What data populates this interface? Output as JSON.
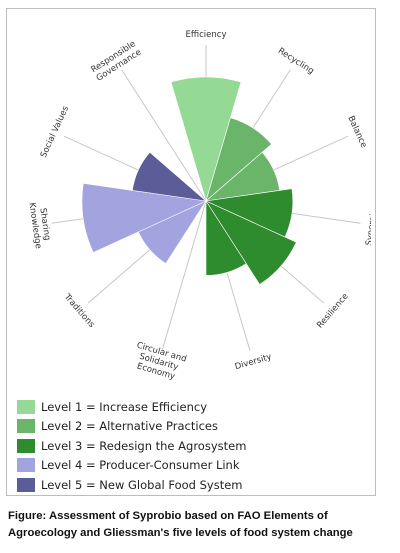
{
  "chart_data": {
    "type": "polar-area",
    "title": "",
    "categories": [
      "Efficiency",
      "Recycling",
      "Balance",
      "Synergies",
      "Resilience",
      "Diversity",
      "Circular and Solidarity Economy",
      "Traditions",
      "Sharing Knowledge",
      "Social Values",
      "Responsible Governance"
    ],
    "category_lines": [
      [
        "Efficiency"
      ],
      [
        "Recycling"
      ],
      [
        "Balance"
      ],
      [
        "Synergies"
      ],
      [
        "Resilience"
      ],
      [
        "Diversity"
      ],
      [
        "Circular and",
        "Solidarity",
        "Economy"
      ],
      [
        "Traditions"
      ],
      [
        "Sharing",
        "Knowledge"
      ],
      [
        "Social Values"
      ],
      [
        "Responsible",
        "Governance"
      ]
    ],
    "values": [
      5,
      3.5,
      3,
      3.5,
      4,
      3,
      0,
      3,
      5,
      3,
      0
    ],
    "level_of_category": [
      1,
      2,
      2,
      3,
      3,
      3,
      null,
      4,
      4,
      5,
      null
    ],
    "scale_max": 5,
    "legend": [
      {
        "level": "Level 1",
        "label": "Increase Efficiency",
        "color": "#94d994"
      },
      {
        "level": "Level 2",
        "label": "Alternative Practices",
        "color": "#6bb56b"
      },
      {
        "level": "Level 3",
        "label": "Redesign the Agrosystem",
        "color": "#2e8b2e"
      },
      {
        "level": "Level 4",
        "label": "Producer-Consumer Link",
        "color": "#a3a3e0"
      },
      {
        "level": "Level 5",
        "label": "New Global Food System",
        "color": "#5c5c99"
      }
    ],
    "legend_placement": "bottom",
    "grid": false
  },
  "caption": {
    "line1": "Figure: Assessment of Syprobio based on FAO Elements of",
    "line2": "Agroecology and Gliessman's five levels of food system change"
  }
}
